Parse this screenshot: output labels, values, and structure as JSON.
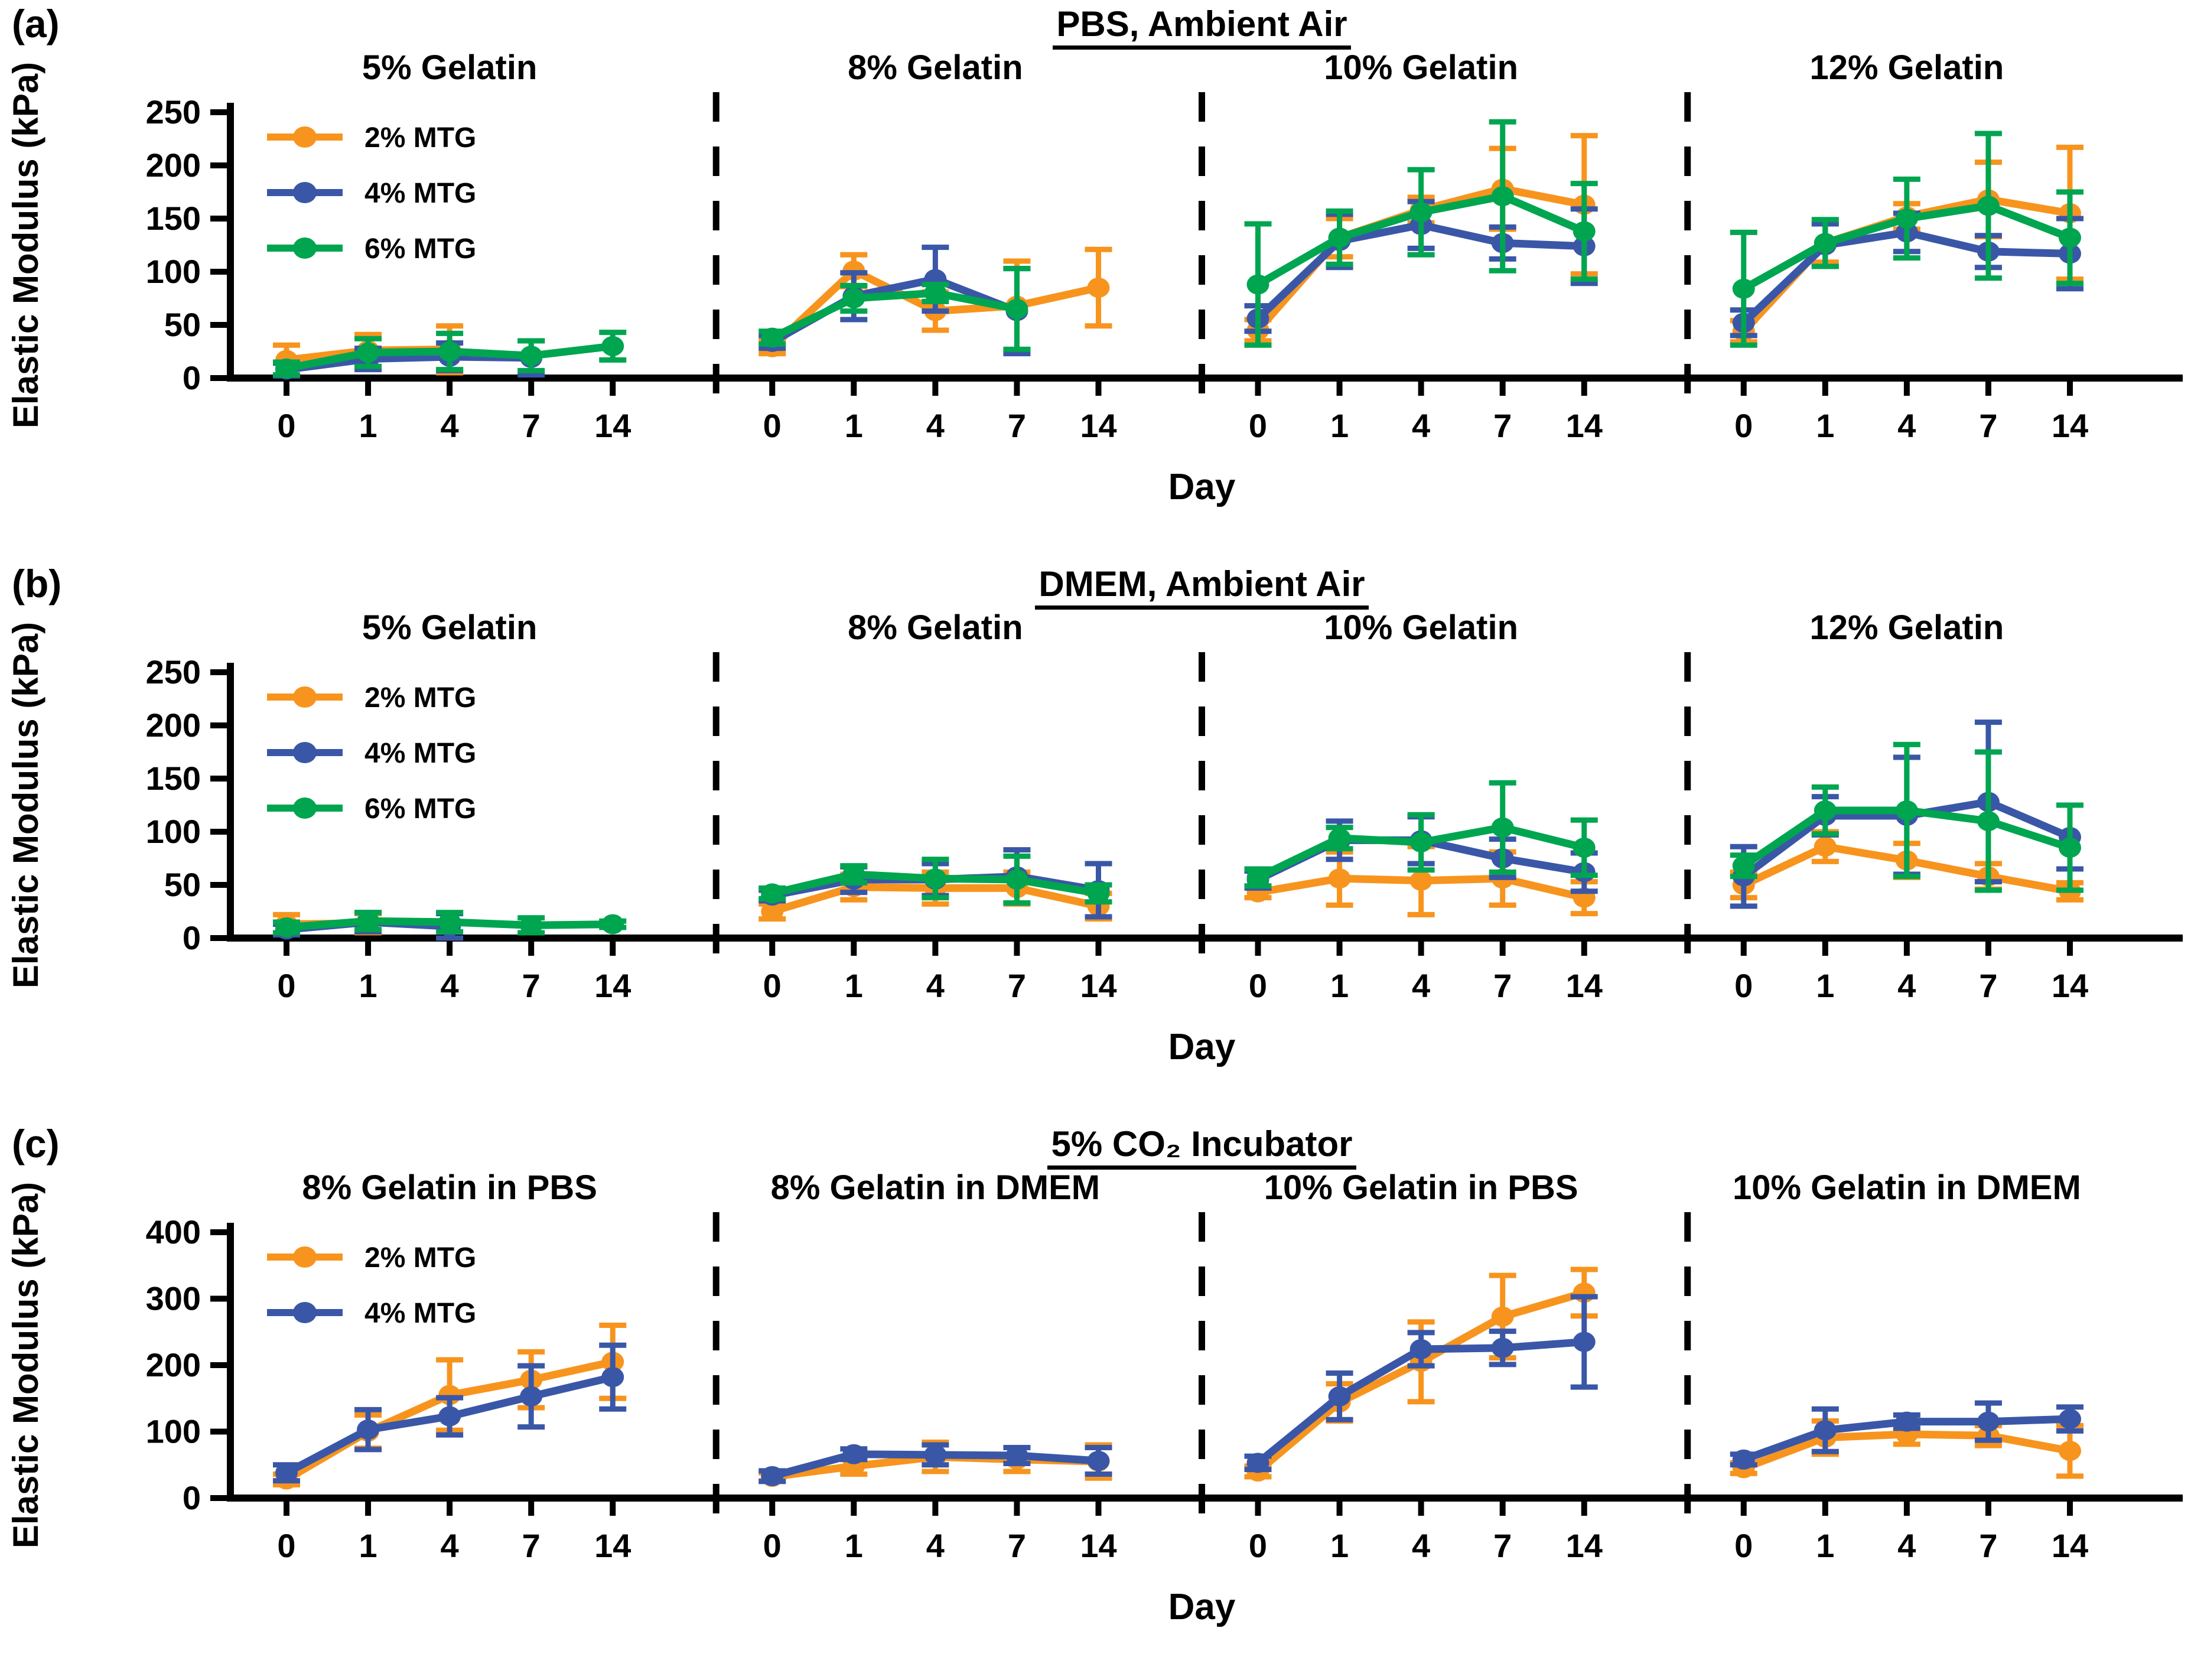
{
  "figure": {
    "ylabel": "Elastic Modulus (kPa)",
    "xlabel": "Day",
    "background": "#FFFFFF",
    "axis_color": "#000000",
    "series_colors": {
      "2% MTG": "#F7941E",
      "4% MTG": "#3A57A7",
      "6% MTG": "#00A550"
    }
  },
  "chart_data": [
    {
      "type": "line",
      "panel": "(a)",
      "title": "PBS, Ambient Air",
      "ylabel": "Elastic Modulus (kPa)",
      "xlabel": "Day",
      "ylim": [
        0,
        250
      ],
      "yticks": [
        0,
        50,
        100,
        150,
        200,
        250
      ],
      "categories": [
        0,
        1,
        4,
        7,
        14
      ],
      "legend_position": "top-left-first-subplot",
      "legend": [
        "2% MTG",
        "4% MTG",
        "6% MTG"
      ],
      "subplots": [
        {
          "title": "5% Gelatin",
          "series": [
            {
              "name": "2% MTG",
              "color": "#F7941E",
              "values": [
                17,
                26,
                27,
                null,
                null
              ],
              "errors": [
                14,
                15,
                22,
                null,
                null
              ]
            },
            {
              "name": "4% MTG",
              "color": "#3A57A7",
              "values": [
                8,
                18,
                20,
                19,
                null
              ],
              "errors": [
                6,
                10,
                13,
                16,
                null
              ]
            },
            {
              "name": "6% MTG",
              "color": "#00A550",
              "values": [
                9,
                24,
                25,
                21,
                30
              ],
              "errors": [
                6,
                13,
                17,
                14,
                13
              ]
            }
          ]
        },
        {
          "title": "8% Gelatin",
          "series": [
            {
              "name": "2% MTG",
              "color": "#F7941E",
              "values": [
                29,
                101,
                63,
                68,
                85
              ],
              "errors": [
                6,
                15,
                18,
                42,
                36
              ]
            },
            {
              "name": "4% MTG",
              "color": "#3A57A7",
              "values": [
                34,
                77,
                93,
                63,
                null
              ],
              "errors": [
                6,
                22,
                30,
                40,
                null
              ]
            },
            {
              "name": "6% MTG",
              "color": "#00A550",
              "values": [
                38,
                75,
                80,
                65,
                null
              ],
              "errors": [
                6,
                12,
                8,
                38,
                null
              ]
            }
          ]
        },
        {
          "title": "10% Gelatin",
          "series": [
            {
              "name": "2% MTG",
              "color": "#F7941E",
              "values": [
                45,
                132,
                158,
                178,
                163
              ],
              "errors": [
                10,
                18,
                12,
                38,
                65
              ]
            },
            {
              "name": "4% MTG",
              "color": "#3A57A7",
              "values": [
                56,
                129,
                144,
                127,
                124
              ],
              "errors": [
                12,
                25,
                22,
                15,
                35
              ]
            },
            {
              "name": "6% MTG",
              "color": "#00A550",
              "values": [
                88,
                132,
                156,
                171,
                138
              ],
              "errors": [
                57,
                25,
                40,
                70,
                45
              ]
            }
          ]
        },
        {
          "title": "12% Gelatin",
          "series": [
            {
              "name": "2% MTG",
              "color": "#F7941E",
              "values": [
                44,
                127,
                152,
                168,
                155
              ],
              "errors": [
                10,
                18,
                12,
                35,
                62
              ]
            },
            {
              "name": "4% MTG",
              "color": "#3A57A7",
              "values": [
                52,
                125,
                137,
                119,
                117
              ],
              "errors": [
                12,
                20,
                18,
                15,
                33
              ]
            },
            {
              "name": "6% MTG",
              "color": "#00A550",
              "values": [
                84,
                127,
                150,
                162,
                132
              ],
              "errors": [
                53,
                22,
                37,
                68,
                43
              ]
            }
          ]
        }
      ]
    },
    {
      "type": "line",
      "panel": "(b)",
      "title": "DMEM, Ambient Air",
      "ylabel": "Elastic Modulus (kPa)",
      "xlabel": "Day",
      "ylim": [
        0,
        250
      ],
      "yticks": [
        0,
        50,
        100,
        150,
        200,
        250
      ],
      "categories": [
        0,
        1,
        4,
        7,
        14
      ],
      "legend_position": "top-left-first-subplot",
      "legend": [
        "2% MTG",
        "4% MTG",
        "6% MTG"
      ],
      "subplots": [
        {
          "title": "5% Gelatin",
          "series": [
            {
              "name": "2% MTG",
              "color": "#F7941E",
              "values": [
                13,
                14,
                null,
                null,
                null
              ],
              "errors": [
                9,
                9,
                null,
                null,
                null
              ]
            },
            {
              "name": "4% MTG",
              "color": "#3A57A7",
              "values": [
                8,
                15,
                11,
                null,
                null
              ],
              "errors": [
                5,
                9,
                12,
                null,
                null
              ]
            },
            {
              "name": "6% MTG",
              "color": "#00A550",
              "values": [
                10,
                16,
                15,
                12,
                13
              ],
              "errors": [
                5,
                8,
                9,
                7,
                3
              ]
            }
          ]
        },
        {
          "title": "8% Gelatin",
          "series": [
            {
              "name": "2% MTG",
              "color": "#F7941E",
              "values": [
                25,
                48,
                47,
                47,
                30
              ],
              "errors": [
                7,
                12,
                15,
                15,
                12
              ]
            },
            {
              "name": "4% MTG",
              "color": "#3A57A7",
              "values": [
                40,
                55,
                55,
                58,
                45
              ],
              "errors": [
                5,
                12,
                15,
                25,
                25
              ]
            },
            {
              "name": "6% MTG",
              "color": "#00A550",
              "values": [
                42,
                60,
                56,
                55,
                42
              ],
              "errors": [
                5,
                8,
                18,
                22,
                8
              ]
            }
          ]
        },
        {
          "title": "10% Gelatin",
          "series": [
            {
              "name": "2% MTG",
              "color": "#F7941E",
              "values": [
                43,
                56,
                54,
                56,
                38
              ],
              "errors": [
                5,
                25,
                32,
                25,
                15
              ]
            },
            {
              "name": "4% MTG",
              "color": "#3A57A7",
              "values": [
                55,
                92,
                92,
                75,
                62
              ],
              "errors": [
                8,
                18,
                22,
                18,
                18
              ]
            },
            {
              "name": "6% MTG",
              "color": "#00A550",
              "values": [
                57,
                94,
                90,
                104,
                85
              ],
              "errors": [
                8,
                10,
                26,
                42,
                26
              ]
            }
          ]
        },
        {
          "title": "12% Gelatin",
          "series": [
            {
              "name": "2% MTG",
              "color": "#F7941E",
              "values": [
                50,
                86,
                73,
                58,
                44
              ],
              "errors": [
                12,
                14,
                16,
                12,
                8
              ]
            },
            {
              "name": "4% MTG",
              "color": "#3A57A7",
              "values": [
                58,
                115,
                115,
                128,
                95
              ],
              "errors": [
                28,
                18,
                55,
                75,
                30
              ]
            },
            {
              "name": "6% MTG",
              "color": "#00A550",
              "values": [
                68,
                120,
                120,
                110,
                85
              ],
              "errors": [
                10,
                22,
                62,
                65,
                40
              ]
            }
          ]
        }
      ]
    },
    {
      "type": "line",
      "panel": "(c)",
      "title": "5% CO₂ Incubator",
      "ylabel": "Elastic Modulus (kPa)",
      "xlabel": "Day",
      "ylim": [
        0,
        400
      ],
      "yticks": [
        0,
        100,
        200,
        300,
        400
      ],
      "categories": [
        0,
        1,
        4,
        7,
        14
      ],
      "legend_position": "top-left-first-subplot",
      "legend": [
        "2% MTG",
        "4% MTG"
      ],
      "subplots": [
        {
          "title": "8% Gelatin in PBS",
          "series": [
            {
              "name": "2% MTG",
              "color": "#F7941E",
              "values": [
                28,
                100,
                155,
                178,
                205
              ],
              "errors": [
                8,
                25,
                53,
                42,
                55
              ]
            },
            {
              "name": "4% MTG",
              "color": "#3A57A7",
              "values": [
                38,
                103,
                123,
                153,
                182
              ],
              "errors": [
                12,
                30,
                28,
                46,
                48
              ]
            }
          ]
        },
        {
          "title": "8% Gelatin in DMEM",
          "series": [
            {
              "name": "2% MTG",
              "color": "#F7941E",
              "values": [
                32,
                48,
                62,
                58,
                55
              ],
              "errors": [
                6,
                12,
                22,
                18,
                25
              ]
            },
            {
              "name": "4% MTG",
              "color": "#3A57A7",
              "values": [
                33,
                66,
                65,
                64,
                56
              ],
              "errors": [
                8,
                8,
                15,
                12,
                20
              ]
            }
          ]
        },
        {
          "title": "10% Gelatin in PBS",
          "series": [
            {
              "name": "2% MTG",
              "color": "#F7941E",
              "values": [
                40,
                144,
                205,
                273,
                309
              ],
              "errors": [
                8,
                28,
                60,
                62,
                35
              ]
            },
            {
              "name": "4% MTG",
              "color": "#3A57A7",
              "values": [
                53,
                153,
                224,
                226,
                235
              ],
              "errors": [
                10,
                35,
                25,
                25,
                68
              ]
            }
          ]
        },
        {
          "title": "10% Gelatin in DMEM",
          "series": [
            {
              "name": "2% MTG",
              "color": "#F7941E",
              "values": [
                45,
                91,
                96,
                94,
                71
              ],
              "errors": [
                8,
                25,
                15,
                15,
                38
              ]
            },
            {
              "name": "4% MTG",
              "color": "#3A57A7",
              "values": [
                58,
                102,
                115,
                115,
                119
              ],
              "errors": [
                8,
                32,
                10,
                28,
                18
              ]
            }
          ]
        }
      ]
    }
  ]
}
